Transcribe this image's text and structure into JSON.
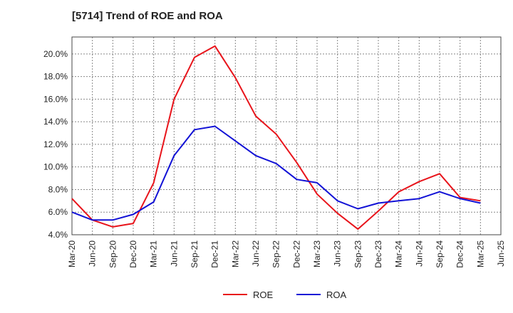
{
  "chart_data": {
    "type": "line",
    "title": "[5714]  Trend of ROE and ROA",
    "xlabel": "",
    "ylabel": "",
    "categories": [
      "Mar-20",
      "Jun-20",
      "Sep-20",
      "Dec-20",
      "Mar-21",
      "Jun-21",
      "Sep-21",
      "Dec-21",
      "Mar-22",
      "Jun-22",
      "Sep-22",
      "Dec-22",
      "Mar-23",
      "Jun-23",
      "Sep-23",
      "Dec-23",
      "Mar-24",
      "Jun-24",
      "Sep-24",
      "Dec-24",
      "Mar-25",
      "Jun-25"
    ],
    "ylim": [
      4.0,
      21.5
    ],
    "yticks": [
      4.0,
      6.0,
      8.0,
      10.0,
      12.0,
      14.0,
      16.0,
      18.0,
      20.0
    ],
    "ytick_labels": [
      "4.0%",
      "6.0%",
      "8.0%",
      "10.0%",
      "12.0%",
      "14.0%",
      "16.0%",
      "18.0%",
      "20.0%"
    ],
    "grid": true,
    "legend_position": "bottom",
    "series": [
      {
        "name": "ROE",
        "color": "#e8141b",
        "values": [
          7.2,
          5.3,
          4.7,
          5.0,
          8.6,
          16.0,
          19.7,
          20.7,
          17.9,
          14.5,
          12.9,
          10.4,
          7.6,
          5.9,
          4.5,
          6.1,
          7.8,
          8.7,
          9.4,
          7.3,
          7.0,
          null
        ]
      },
      {
        "name": "ROA",
        "color": "#1212d6",
        "values": [
          6.0,
          5.3,
          5.3,
          5.8,
          6.9,
          11.0,
          13.3,
          13.6,
          12.3,
          11.0,
          10.3,
          8.9,
          8.6,
          7.0,
          6.3,
          6.8,
          7.0,
          7.2,
          7.8,
          7.2,
          6.8,
          null
        ]
      }
    ]
  }
}
